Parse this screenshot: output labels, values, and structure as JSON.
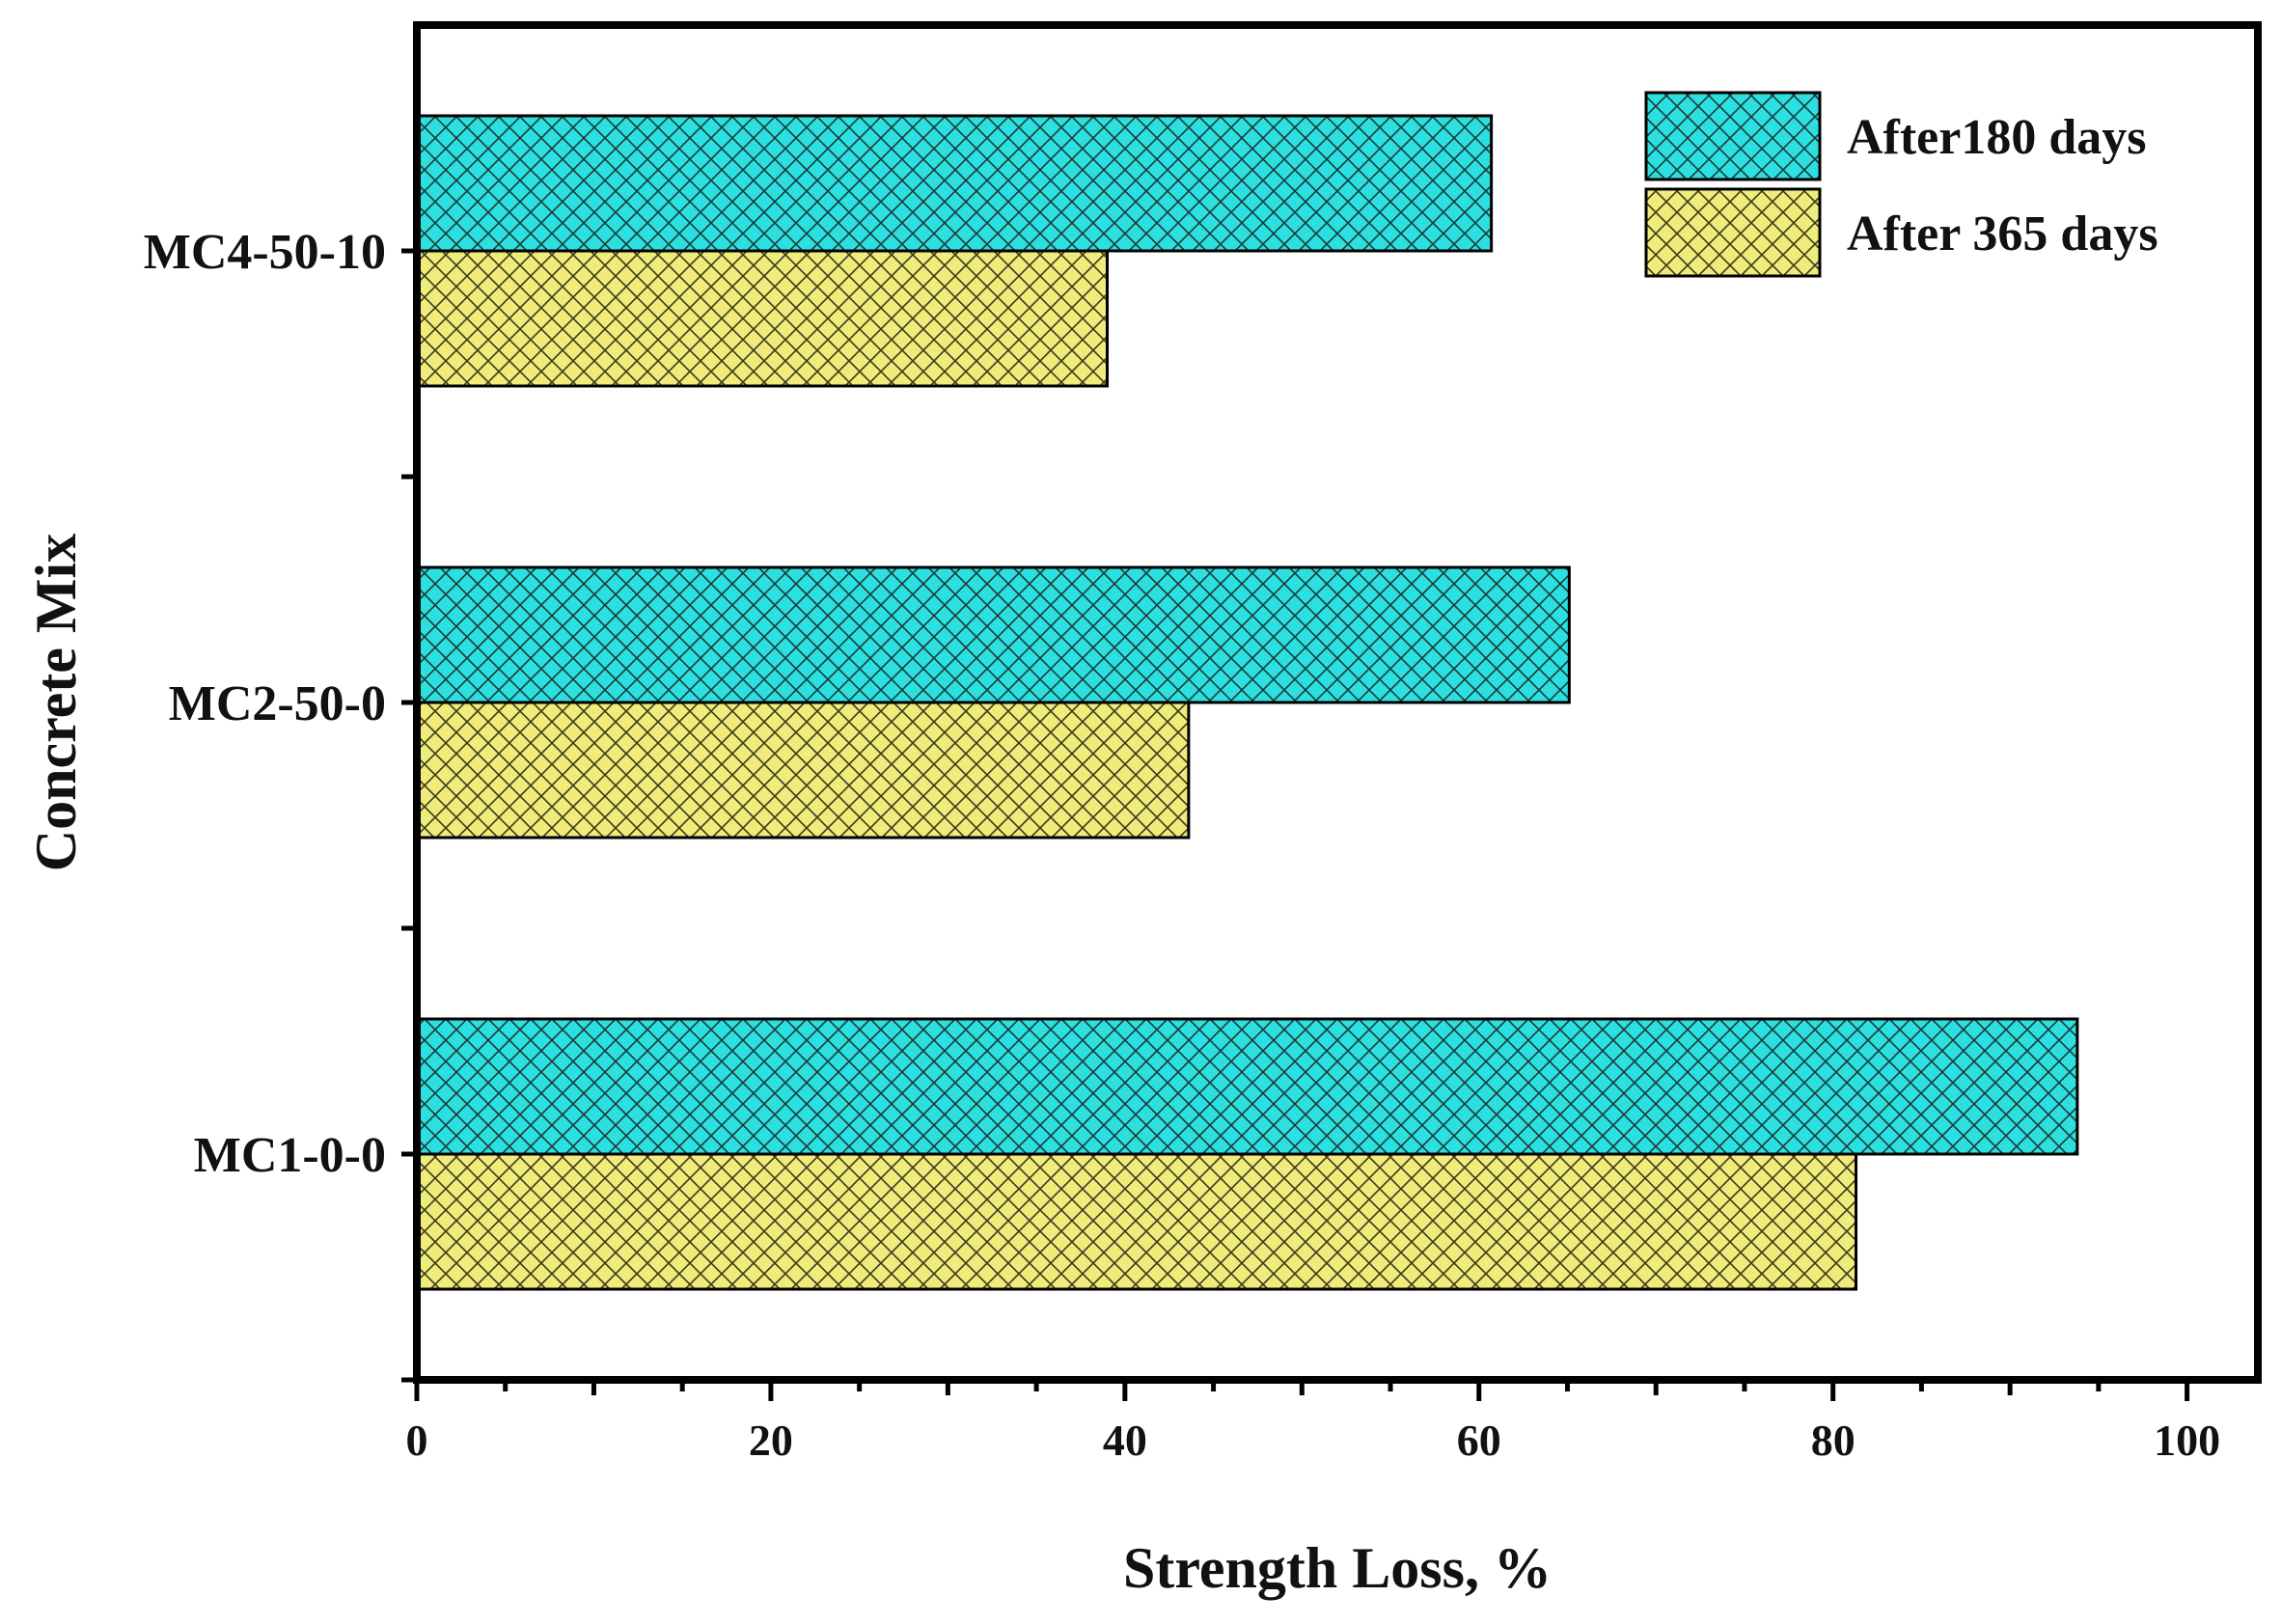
{
  "chart_data": {
    "type": "bar",
    "orientation": "horizontal",
    "title": "",
    "xlabel": "Strength Loss, %",
    "ylabel": "Concrete Mix",
    "xlim": [
      0,
      104
    ],
    "xticks": [
      0,
      20,
      40,
      60,
      80,
      100
    ],
    "categories": [
      "MC1-0-0",
      "MC2-50-0",
      "MC4-50-10"
    ],
    "series": [
      {
        "name": "After180 days",
        "values": [
          93.8,
          65.1,
          60.7
        ],
        "color": "#2de0e0"
      },
      {
        "name": "After 365 days",
        "values": [
          81.3,
          43.6,
          39.0
        ],
        "color": "#f0ec7c"
      }
    ],
    "legend_position": "top-right",
    "grid": false
  }
}
